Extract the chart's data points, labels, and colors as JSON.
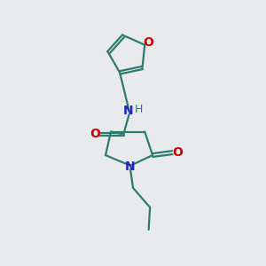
{
  "bg_color": "#e8eaeb",
  "bond_color": "#2d7d6e",
  "N_color": "#2222cc",
  "O_color": "#cc0000",
  "line_width": 1.6,
  "font_size": 9,
  "fig_size": [
    3.0,
    3.0
  ],
  "dpi": 100,
  "xlim": [
    0,
    10
  ],
  "ylim": [
    0,
    10
  ]
}
